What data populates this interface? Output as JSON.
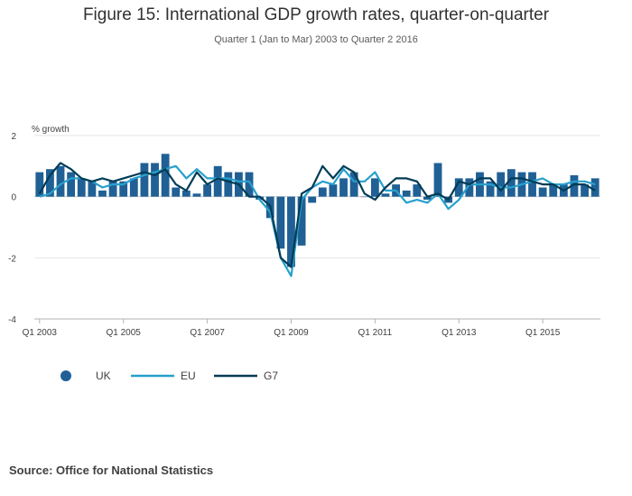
{
  "chart_data": {
    "type": "bar",
    "title": "Figure 15: International GDP growth rates, quarter-on-quarter",
    "subtitle": "Quarter 1 (Jan to Mar) 2003 to Quarter 2 2016",
    "ylabel": "% growth",
    "xlabel": "",
    "ylim": [
      -4,
      2
    ],
    "y_ticks": [
      "2",
      "0",
      "-2",
      "-4"
    ],
    "x_ticks": [
      "Q1 2003",
      "Q1 2005",
      "Q1 2007",
      "Q1 2009",
      "Q1 2011",
      "Q1 2013",
      "Q1 2015"
    ],
    "grid": true,
    "legend_position": "bottom-left",
    "categories": [
      "Q1 2003",
      "Q2 2003",
      "Q3 2003",
      "Q4 2003",
      "Q1 2004",
      "Q2 2004",
      "Q3 2004",
      "Q4 2004",
      "Q1 2005",
      "Q2 2005",
      "Q3 2005",
      "Q4 2005",
      "Q1 2006",
      "Q2 2006",
      "Q3 2006",
      "Q4 2006",
      "Q1 2007",
      "Q2 2007",
      "Q3 2007",
      "Q4 2007",
      "Q1 2008",
      "Q2 2008",
      "Q3 2008",
      "Q4 2008",
      "Q1 2009",
      "Q2 2009",
      "Q3 2009",
      "Q4 2009",
      "Q1 2010",
      "Q2 2010",
      "Q3 2010",
      "Q4 2010",
      "Q1 2011",
      "Q2 2011",
      "Q3 2011",
      "Q4 2011",
      "Q1 2012",
      "Q2 2012",
      "Q3 2012",
      "Q4 2012",
      "Q1 2013",
      "Q2 2013",
      "Q3 2013",
      "Q4 2013",
      "Q1 2014",
      "Q2 2014",
      "Q3 2014",
      "Q4 2014",
      "Q1 2015",
      "Q2 2015",
      "Q3 2015",
      "Q4 2015",
      "Q1 2016",
      "Q2 2016"
    ],
    "series": [
      {
        "name": "UK",
        "type": "bar",
        "color": "#206095",
        "values": [
          0.8,
          0.9,
          1.0,
          0.8,
          0.6,
          0.5,
          0.2,
          0.5,
          0.5,
          0.6,
          1.1,
          1.1,
          1.4,
          0.3,
          0.2,
          0.1,
          0.4,
          1.0,
          0.8,
          0.8,
          0.8,
          -0.1,
          -0.7,
          -1.7,
          -2.3,
          -1.6,
          -0.2,
          0.3,
          0.4,
          0.6,
          0.8,
          0.0,
          0.6,
          0.1,
          0.4,
          0.2,
          0.4,
          -0.1,
          1.1,
          -0.2,
          0.6,
          0.6,
          0.8,
          0.5,
          0.8,
          0.9,
          0.8,
          0.8,
          0.3,
          0.4,
          0.4,
          0.7,
          0.4,
          0.6
        ]
      },
      {
        "name": "EU",
        "type": "line",
        "color": "#27a0cc",
        "values": [
          0.0,
          0.1,
          0.4,
          0.6,
          0.6,
          0.5,
          0.3,
          0.4,
          0.4,
          0.6,
          0.7,
          0.8,
          0.9,
          1.0,
          0.6,
          0.9,
          0.6,
          0.6,
          0.6,
          0.5,
          0.5,
          -0.1,
          -0.5,
          -2.0,
          -2.6,
          -0.1,
          0.3,
          0.5,
          0.4,
          0.9,
          0.5,
          0.5,
          0.8,
          0.2,
          0.2,
          -0.2,
          -0.1,
          -0.2,
          0.1,
          -0.4,
          -0.1,
          0.4,
          0.4,
          0.4,
          0.3,
          0.3,
          0.4,
          0.5,
          0.6,
          0.4,
          0.4,
          0.5,
          0.5,
          0.4
        ]
      },
      {
        "name": "G7",
        "type": "line",
        "color": "#003c57",
        "values": [
          0.1,
          0.7,
          1.1,
          0.9,
          0.6,
          0.5,
          0.6,
          0.5,
          0.6,
          0.7,
          0.8,
          0.7,
          0.9,
          0.4,
          0.2,
          0.8,
          0.4,
          0.6,
          0.5,
          0.4,
          0.0,
          0.0,
          -0.3,
          -2.0,
          -2.3,
          0.1,
          0.3,
          1.0,
          0.6,
          1.0,
          0.8,
          0.1,
          -0.1,
          0.3,
          0.6,
          0.6,
          0.5,
          0.0,
          0.1,
          -0.1,
          0.5,
          0.4,
          0.6,
          0.6,
          0.2,
          0.6,
          0.6,
          0.5,
          0.4,
          0.4,
          0.2,
          0.4,
          0.4,
          0.2
        ]
      }
    ]
  },
  "source": "Source: Office for National Statistics"
}
